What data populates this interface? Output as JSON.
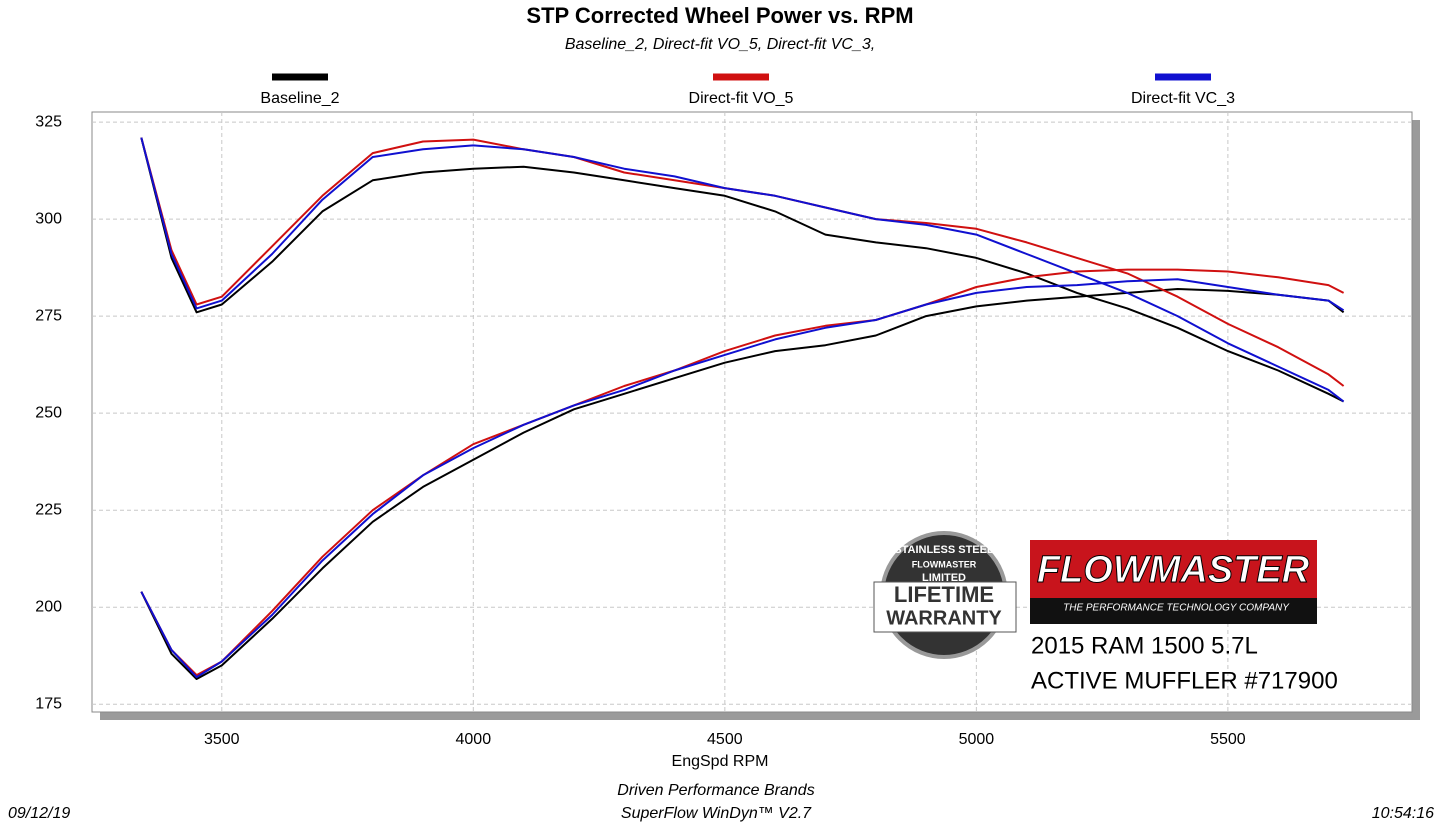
{
  "chart_data": {
    "type": "line",
    "title": "STP Corrected Wheel Power vs. RPM",
    "subtitle": "Baseline_2, Direct-fit VO_5, Direct-fit VC_3,",
    "x_label": "EngSpd  RPM",
    "footer": [
      "Driven Performance Brands",
      "SuperFlow WinDyn™  V2.7"
    ],
    "date": "09/12/19",
    "time": "10:54:16",
    "logo": {
      "brand": "FLOWMASTER",
      "tagline": "THE PERFORMANCE TECHNOLOGY COMPANY"
    },
    "badge": [
      "STAINLESS STEEL",
      "FLOWMASTER",
      "LIMITED",
      "LIFETIME",
      "WARRANTY"
    ],
    "annotation": [
      "2015 RAM 1500 5.7L",
      "ACTIVE MUFFLER #717900"
    ],
    "x": [
      3340,
      3400,
      3450,
      3500,
      3600,
      3700,
      3800,
      3900,
      4000,
      4100,
      4200,
      4300,
      4400,
      4500,
      4600,
      4700,
      4800,
      4900,
      5000,
      5100,
      5200,
      5300,
      5400,
      5500,
      5600,
      5700,
      5730
    ],
    "series": [
      {
        "name": "Baseline_2",
        "color": "#000000",
        "values": [
          [
            321,
            290,
            276,
            278,
            289,
            302,
            310,
            312,
            313,
            313.5,
            312,
            310,
            308,
            306,
            302,
            296,
            294,
            292.5,
            290,
            286,
            281,
            277,
            272,
            266,
            261,
            255,
            253
          ],
          [
            204,
            188,
            181.5,
            185,
            197,
            210,
            222,
            231,
            238,
            245,
            251,
            255,
            259,
            263,
            266,
            267.5,
            270,
            275,
            277.5,
            279,
            280,
            281,
            282,
            281.5,
            280.5,
            279,
            276
          ]
        ]
      },
      {
        "name": "Direct-fit VO_5",
        "color": "#d01010",
        "values": [
          [
            321,
            292,
            278,
            280,
            293,
            306,
            317,
            320,
            320.5,
            318,
            316,
            312,
            310,
            308,
            306,
            303,
            300,
            299,
            297.5,
            294,
            290,
            286,
            280,
            273,
            267,
            260,
            257
          ],
          [
            204,
            189,
            182.5,
            186,
            199,
            213,
            225,
            234,
            242,
            247,
            252,
            257,
            261,
            266,
            270,
            272.5,
            274,
            278,
            282.5,
            285,
            286.5,
            287,
            287,
            286.5,
            285,
            283,
            281
          ]
        ]
      },
      {
        "name": "Direct-fit VC_3",
        "color": "#1010d0",
        "values": [
          [
            321,
            291,
            277,
            279,
            291,
            305,
            316,
            318,
            319,
            318,
            316,
            313,
            311,
            308,
            306,
            303,
            300,
            298.5,
            296,
            291,
            286,
            281,
            275,
            268,
            262,
            256,
            253
          ],
          [
            204,
            189,
            182,
            186,
            198,
            212,
            224,
            234,
            241,
            247,
            252,
            256,
            261,
            265,
            269,
            272,
            274,
            278,
            281,
            282.5,
            283,
            284,
            284.5,
            282.5,
            280.5,
            279,
            276.5
          ]
        ]
      }
    ],
    "xlim": [
      3242,
      5866
    ],
    "ylim": [
      173,
      327.6
    ],
    "xticks": [
      3500,
      4000,
      4500,
      5000,
      5500
    ],
    "yticks": [
      175,
      200,
      225,
      250,
      275,
      300,
      325
    ],
    "grid": true
  }
}
